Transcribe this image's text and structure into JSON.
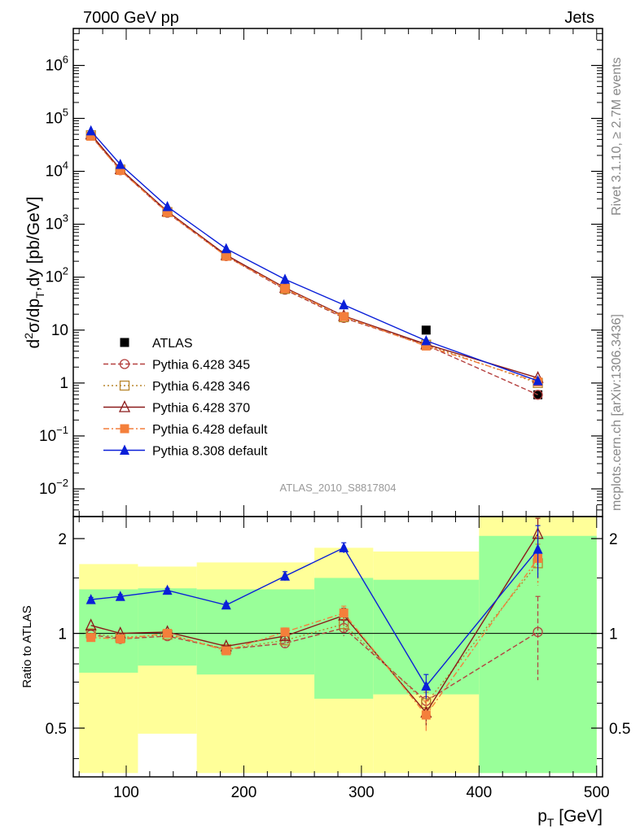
{
  "header": {
    "left": "7000 GeV pp",
    "right": "Jets"
  },
  "side": {
    "top": "Rivet 3.1.10, ≥ 2.7M events",
    "bottom": "mcplots.cern.ch [arXiv:1306.3436]"
  },
  "analysis_label": "ATLAS_2010_S8817804",
  "chart_data": [
    {
      "type": "scatter",
      "panel": "main",
      "ylabel": "d²σ/dp_T,dy [pb/GeV]",
      "yscale": "log",
      "ylim": [
        0.003,
        5000000
      ],
      "xlim": [
        55,
        505
      ],
      "y_ticks": [
        {
          "value": 0.01,
          "base": "10",
          "exp": "−2"
        },
        {
          "value": 0.1,
          "base": "10",
          "exp": "−1"
        },
        {
          "value": 1,
          "base": "1",
          "exp": ""
        },
        {
          "value": 10,
          "base": "10",
          "exp": ""
        },
        {
          "value": 100,
          "base": "10",
          "exp": "2"
        },
        {
          "value": 1000,
          "base": "10",
          "exp": "3"
        },
        {
          "value": 10000,
          "base": "10",
          "exp": "4"
        },
        {
          "value": 100000,
          "base": "10",
          "exp": "5"
        },
        {
          "value": 1000000,
          "base": "10",
          "exp": "6"
        }
      ],
      "x": [
        70,
        95,
        135,
        185,
        235,
        285,
        355,
        450
      ],
      "series": [
        {
          "name": "ATLAS",
          "key": "atlas",
          "color": "#000000",
          "marker": "square-filled",
          "line": "none",
          "values": [
            null,
            null,
            null,
            null,
            null,
            null,
            10,
            0.6
          ]
        },
        {
          "name": "Pythia 6.428 345",
          "key": "p345",
          "color": "#b5403f",
          "marker": "circle-open",
          "line": "dashed",
          "values": [
            47000,
            10500,
            1650,
            250,
            58,
            17,
            5.2,
            0.6
          ]
        },
        {
          "name": "Pythia 6.428 346",
          "key": "p346",
          "color": "#b8862c",
          "marker": "square-open",
          "line": "dotted",
          "values": [
            48000,
            10800,
            1700,
            255,
            60,
            17.5,
            5.3,
            1.0
          ]
        },
        {
          "name": "Pythia 6.428 370",
          "key": "p370",
          "color": "#8b1a1a",
          "marker": "triangle-open",
          "line": "solid",
          "values": [
            50000,
            11000,
            1750,
            262,
            63,
            18.5,
            5.4,
            1.25
          ]
        },
        {
          "name": "Pythia 6.428 default",
          "key": "pdef",
          "color": "#f47f3b",
          "marker": "square-filled",
          "line": "dashdot",
          "values": [
            46000,
            10400,
            1680,
            248,
            61,
            18,
            5.0,
            1.05
          ]
        },
        {
          "name": "Pythia 8.308 default",
          "key": "p8",
          "color": "#0a1fd8",
          "marker": "triangle-filled",
          "line": "solid",
          "values": [
            58000,
            13500,
            2150,
            345,
            91,
            30,
            6.3,
            1.1
          ]
        }
      ]
    },
    {
      "type": "scatter",
      "panel": "ratio",
      "ylabel": "Ratio to ATLAS",
      "yscale": "log",
      "ylim": [
        0.35,
        2.35
      ],
      "y_ticks": [
        0.5,
        1,
        2
      ],
      "xlabel": "p_T [GeV]",
      "x_ticks": [
        100,
        200,
        300,
        400,
        500
      ],
      "bands": [
        {
          "x": [
            60,
            110
          ],
          "inner": [
            0.75,
            1.38
          ],
          "outer": [
            0.36,
            1.66
          ]
        },
        {
          "x": [
            110,
            160
          ],
          "inner": [
            0.79,
            1.39
          ],
          "outer": [
            0.48,
            1.63
          ]
        },
        {
          "x": [
            160,
            260
          ],
          "inner": [
            0.74,
            1.38
          ],
          "outer": [
            0.36,
            1.68
          ]
        },
        {
          "x": [
            260,
            310
          ],
          "inner": [
            0.62,
            1.5
          ],
          "outer": [
            0.36,
            1.87
          ]
        },
        {
          "x": [
            310,
            400
          ],
          "inner": [
            0.64,
            1.48
          ],
          "outer": [
            0.36,
            1.82
          ]
        },
        {
          "x": [
            400,
            500
          ],
          "inner": [
            0.36,
            2.04
          ],
          "outer": [
            0.36,
            2.35
          ]
        }
      ],
      "band_colors": {
        "inner": "#99ff99",
        "outer": "#ffff99"
      },
      "x": [
        70,
        95,
        135,
        185,
        235,
        285,
        355,
        450
      ],
      "series": [
        {
          "key": "p345",
          "values": [
            0.99,
            0.96,
            0.98,
            0.89,
            0.93,
            1.04,
            0.61,
            1.01
          ],
          "err": [
            0,
            0,
            0,
            0,
            0.03,
            0.06,
            0.05,
            0.3
          ]
        },
        {
          "key": "p346",
          "values": [
            1.0,
            0.97,
            0.99,
            0.89,
            0.95,
            1.07,
            0.6,
            1.67
          ],
          "err": [
            0,
            0,
            0,
            0,
            0.03,
            0.06,
            0.05,
            0.25
          ]
        },
        {
          "key": "p370",
          "values": [
            1.06,
            1.0,
            1.01,
            0.91,
            0.98,
            1.14,
            0.56,
            2.07
          ],
          "err": [
            0,
            0,
            0,
            0,
            0.03,
            0.06,
            0.05,
            0.25
          ]
        },
        {
          "key": "pdef",
          "values": [
            0.97,
            0.96,
            1.0,
            0.88,
            1.01,
            1.16,
            0.55,
            1.73
          ],
          "err": [
            0,
            0,
            0,
            0,
            0.03,
            0.06,
            0.06,
            0.3
          ]
        },
        {
          "key": "p8",
          "values": [
            1.28,
            1.31,
            1.37,
            1.23,
            1.52,
            1.87,
            0.68,
            1.85
          ],
          "err": [
            0.02,
            0.02,
            0.02,
            0.02,
            0.05,
            0.07,
            0.06,
            0.35
          ]
        }
      ]
    }
  ]
}
